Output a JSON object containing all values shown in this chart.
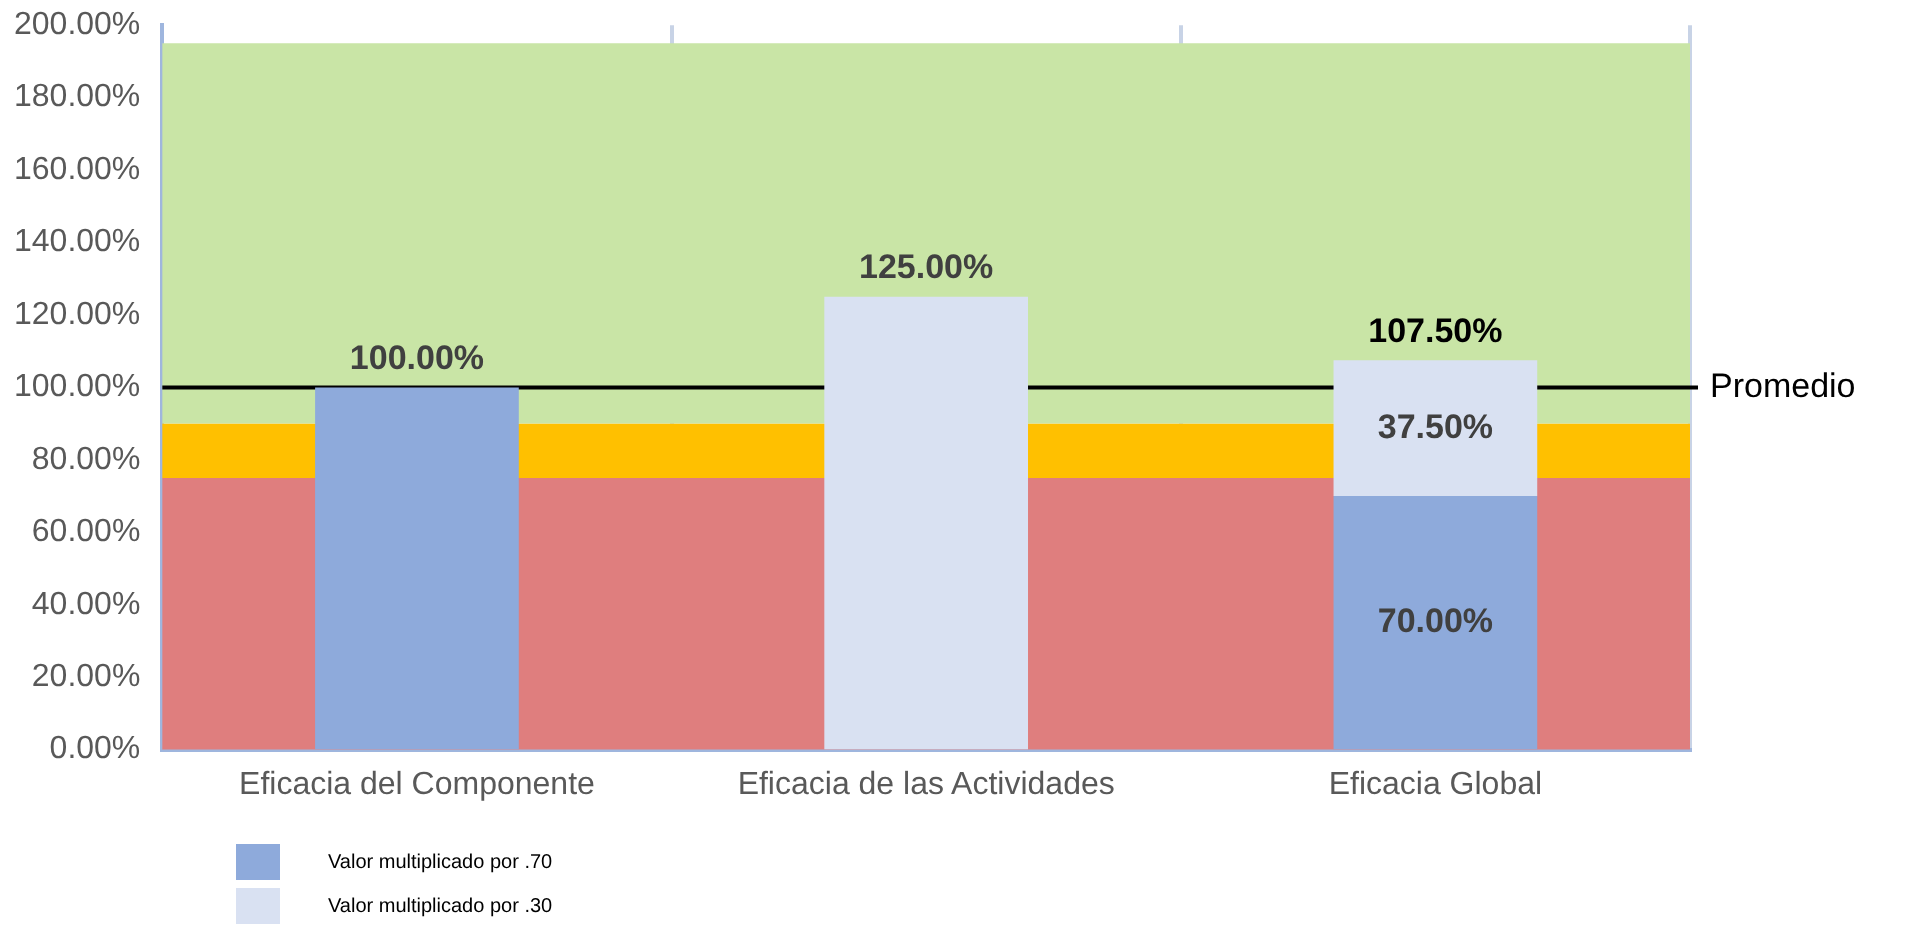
{
  "chart_data": {
    "type": "bar",
    "stacked": true,
    "categories": [
      "Eficacia del Componente",
      "Eficacia de las Actividades",
      "Eficacia Global"
    ],
    "series": [
      {
        "name": "Valor multiplicado por .70",
        "color": "#8eaadb",
        "values": [
          100,
          null,
          70
        ],
        "value_labels": [
          "100.00%",
          null,
          "70.00%"
        ]
      },
      {
        "name": "Valor multiplicado por .30",
        "color": "#d9e1f2",
        "values": [
          null,
          125,
          37.5
        ],
        "value_labels": [
          null,
          "125.00%",
          "37.50%"
        ]
      }
    ],
    "totals": [
      null,
      null,
      "107.50%"
    ],
    "ylim": [
      0,
      200
    ],
    "yticks": [
      {
        "value": 0,
        "label": "0.00%"
      },
      {
        "value": 20,
        "label": "20.00%"
      },
      {
        "value": 40,
        "label": "40.00%"
      },
      {
        "value": 60,
        "label": "60.00%"
      },
      {
        "value": 80,
        "label": "80.00%"
      },
      {
        "value": 100,
        "label": "100.00%"
      },
      {
        "value": 120,
        "label": "120.00%"
      },
      {
        "value": 140,
        "label": "140.00%"
      },
      {
        "value": 160,
        "label": "160.00%"
      },
      {
        "value": 180,
        "label": "180.00%"
      },
      {
        "value": 200,
        "label": "200.00%"
      }
    ],
    "bands": [
      {
        "axis": "y",
        "from": 0,
        "to": 75,
        "color": "#df7e7e"
      },
      {
        "axis": "y",
        "from": 75,
        "to": 90,
        "color": "#ffc000"
      },
      {
        "axis": "y",
        "from": 90,
        "to": 195,
        "color": "#c9e5a6"
      }
    ],
    "ref_lines": [
      {
        "axis": "y",
        "value": 100,
        "label": "Promedio",
        "color": "#000000"
      }
    ],
    "grid": "x",
    "legend": "bottom left"
  }
}
